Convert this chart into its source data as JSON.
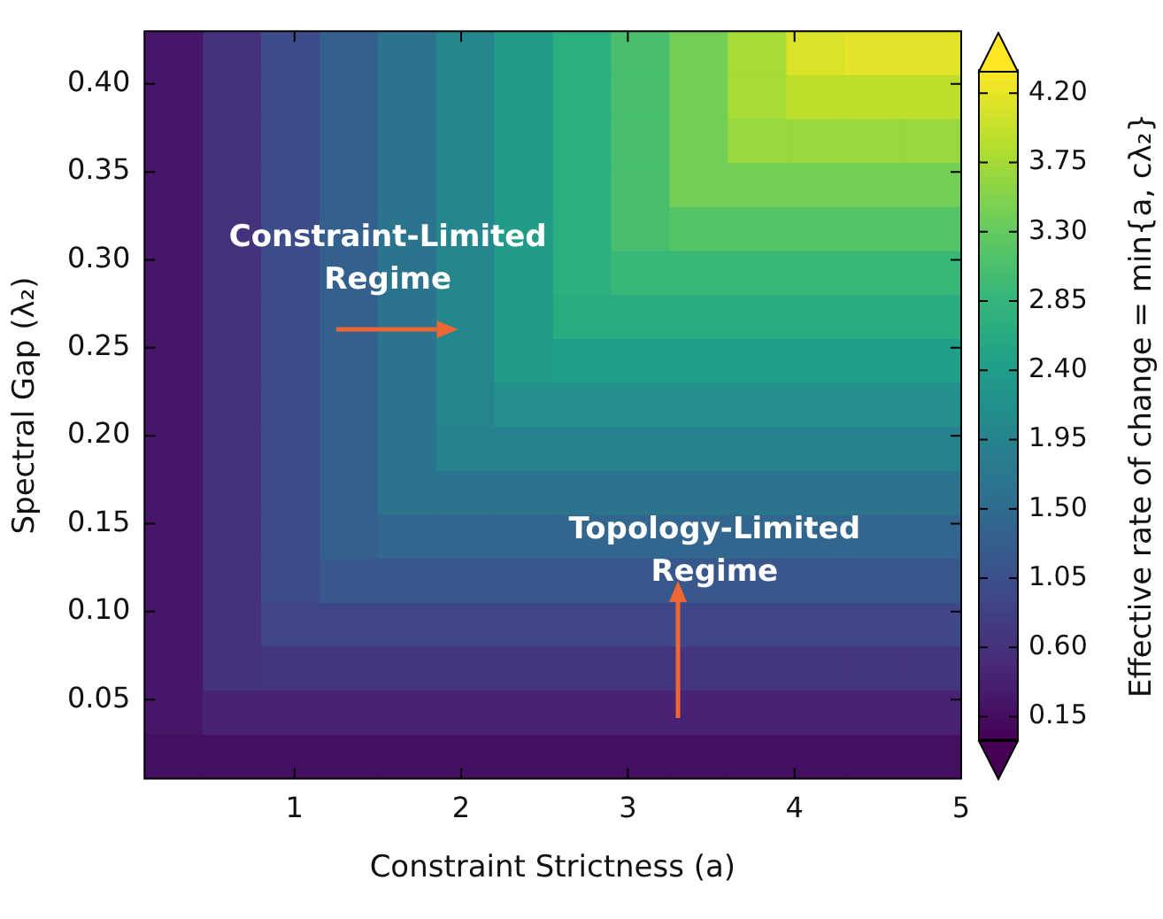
{
  "chart_data": {
    "type": "heatmap",
    "xlabel": "Constraint Strictness (a)",
    "ylabel": "Spectral Gap (λ₂)",
    "clabel": "Effective rate of change = min{a, cλ₂}",
    "x": [
      0.275,
      0.625,
      0.975,
      1.325,
      1.675,
      2.025,
      2.375,
      2.725,
      3.075,
      3.425,
      3.775,
      4.125,
      4.475,
      4.825
    ],
    "y": [
      0.4175,
      0.3925,
      0.3675,
      0.3425,
      0.3175,
      0.2925,
      0.2675,
      0.2425,
      0.2175,
      0.1925,
      0.1675,
      0.1425,
      0.1175,
      0.0925,
      0.0675,
      0.0425,
      0.0175
    ],
    "cells": [
      [
        0.275,
        0.625,
        0.975,
        1.325,
        1.675,
        2.025,
        2.375,
        2.725,
        3.075,
        3.425,
        3.775,
        4.125,
        4.175,
        4.175
      ],
      [
        0.275,
        0.625,
        0.975,
        1.325,
        1.675,
        2.025,
        2.375,
        2.725,
        3.075,
        3.425,
        3.775,
        3.925,
        3.925,
        3.925
      ],
      [
        0.275,
        0.625,
        0.975,
        1.325,
        1.675,
        2.025,
        2.375,
        2.725,
        3.075,
        3.425,
        3.675,
        3.675,
        3.675,
        3.675
      ],
      [
        0.275,
        0.625,
        0.975,
        1.325,
        1.675,
        2.025,
        2.375,
        2.725,
        3.075,
        3.425,
        3.425,
        3.425,
        3.425,
        3.425
      ],
      [
        0.275,
        0.625,
        0.975,
        1.325,
        1.675,
        2.025,
        2.375,
        2.725,
        3.075,
        3.175,
        3.175,
        3.175,
        3.175,
        3.175
      ],
      [
        0.275,
        0.625,
        0.975,
        1.325,
        1.675,
        2.025,
        2.375,
        2.725,
        2.925,
        2.925,
        2.925,
        2.925,
        2.925,
        2.925
      ],
      [
        0.275,
        0.625,
        0.975,
        1.325,
        1.675,
        2.025,
        2.375,
        2.675,
        2.675,
        2.675,
        2.675,
        2.675,
        2.675,
        2.675
      ],
      [
        0.275,
        0.625,
        0.975,
        1.325,
        1.675,
        2.025,
        2.375,
        2.425,
        2.425,
        2.425,
        2.425,
        2.425,
        2.425,
        2.425
      ],
      [
        0.275,
        0.625,
        0.975,
        1.325,
        1.675,
        2.025,
        2.175,
        2.175,
        2.175,
        2.175,
        2.175,
        2.175,
        2.175,
        2.175
      ],
      [
        0.275,
        0.625,
        0.975,
        1.325,
        1.675,
        1.925,
        1.925,
        1.925,
        1.925,
        1.925,
        1.925,
        1.925,
        1.925,
        1.925
      ],
      [
        0.275,
        0.625,
        0.975,
        1.325,
        1.675,
        1.675,
        1.675,
        1.675,
        1.675,
        1.675,
        1.675,
        1.675,
        1.675,
        1.675
      ],
      [
        0.275,
        0.625,
        0.975,
        1.325,
        1.425,
        1.425,
        1.425,
        1.425,
        1.425,
        1.425,
        1.425,
        1.425,
        1.425,
        1.425
      ],
      [
        0.275,
        0.625,
        0.975,
        1.175,
        1.175,
        1.175,
        1.175,
        1.175,
        1.175,
        1.175,
        1.175,
        1.175,
        1.175,
        1.175
      ],
      [
        0.275,
        0.625,
        0.925,
        0.925,
        0.925,
        0.925,
        0.925,
        0.925,
        0.925,
        0.925,
        0.925,
        0.925,
        0.925,
        0.925
      ],
      [
        0.275,
        0.625,
        0.675,
        0.675,
        0.675,
        0.675,
        0.675,
        0.675,
        0.675,
        0.675,
        0.675,
        0.675,
        0.675,
        0.675
      ],
      [
        0.275,
        0.425,
        0.425,
        0.425,
        0.425,
        0.425,
        0.425,
        0.425,
        0.425,
        0.425,
        0.425,
        0.425,
        0.425,
        0.425
      ],
      [
        0.175,
        0.175,
        0.175,
        0.175,
        0.175,
        0.175,
        0.175,
        0.175,
        0.175,
        0.175,
        0.175,
        0.175,
        0.175,
        0.175
      ]
    ],
    "xlim": [
      0.1,
      5.0
    ],
    "ylim": [
      0.005,
      0.43
    ],
    "xticks": [
      1,
      2,
      3,
      4,
      5
    ],
    "yticks": [
      {
        "value": 0.05,
        "label": "0.05"
      },
      {
        "value": 0.1,
        "label": "0.10"
      },
      {
        "value": 0.15,
        "label": "0.15"
      },
      {
        "value": 0.2,
        "label": "0.20"
      },
      {
        "value": 0.25,
        "label": "0.25"
      },
      {
        "value": 0.3,
        "label": "0.30"
      },
      {
        "value": 0.35,
        "label": "0.35"
      },
      {
        "value": 0.4,
        "label": "0.40"
      }
    ],
    "clim": [
      0.0,
      4.35
    ],
    "cticks": [
      {
        "value": 0.15,
        "label": "0.15"
      },
      {
        "value": 0.6,
        "label": "0.60"
      },
      {
        "value": 1.05,
        "label": "1.05"
      },
      {
        "value": 1.5,
        "label": "1.50"
      },
      {
        "value": 1.95,
        "label": "1.95"
      },
      {
        "value": 2.4,
        "label": "2.40"
      },
      {
        "value": 2.85,
        "label": "2.85"
      },
      {
        "value": 3.3,
        "label": "3.30"
      },
      {
        "value": 3.75,
        "label": "3.75"
      },
      {
        "value": 4.2,
        "label": "4.20"
      }
    ],
    "annotations": [
      "Constraint-Limited\nRegime",
      "Topology-Limited\nRegime"
    ]
  }
}
